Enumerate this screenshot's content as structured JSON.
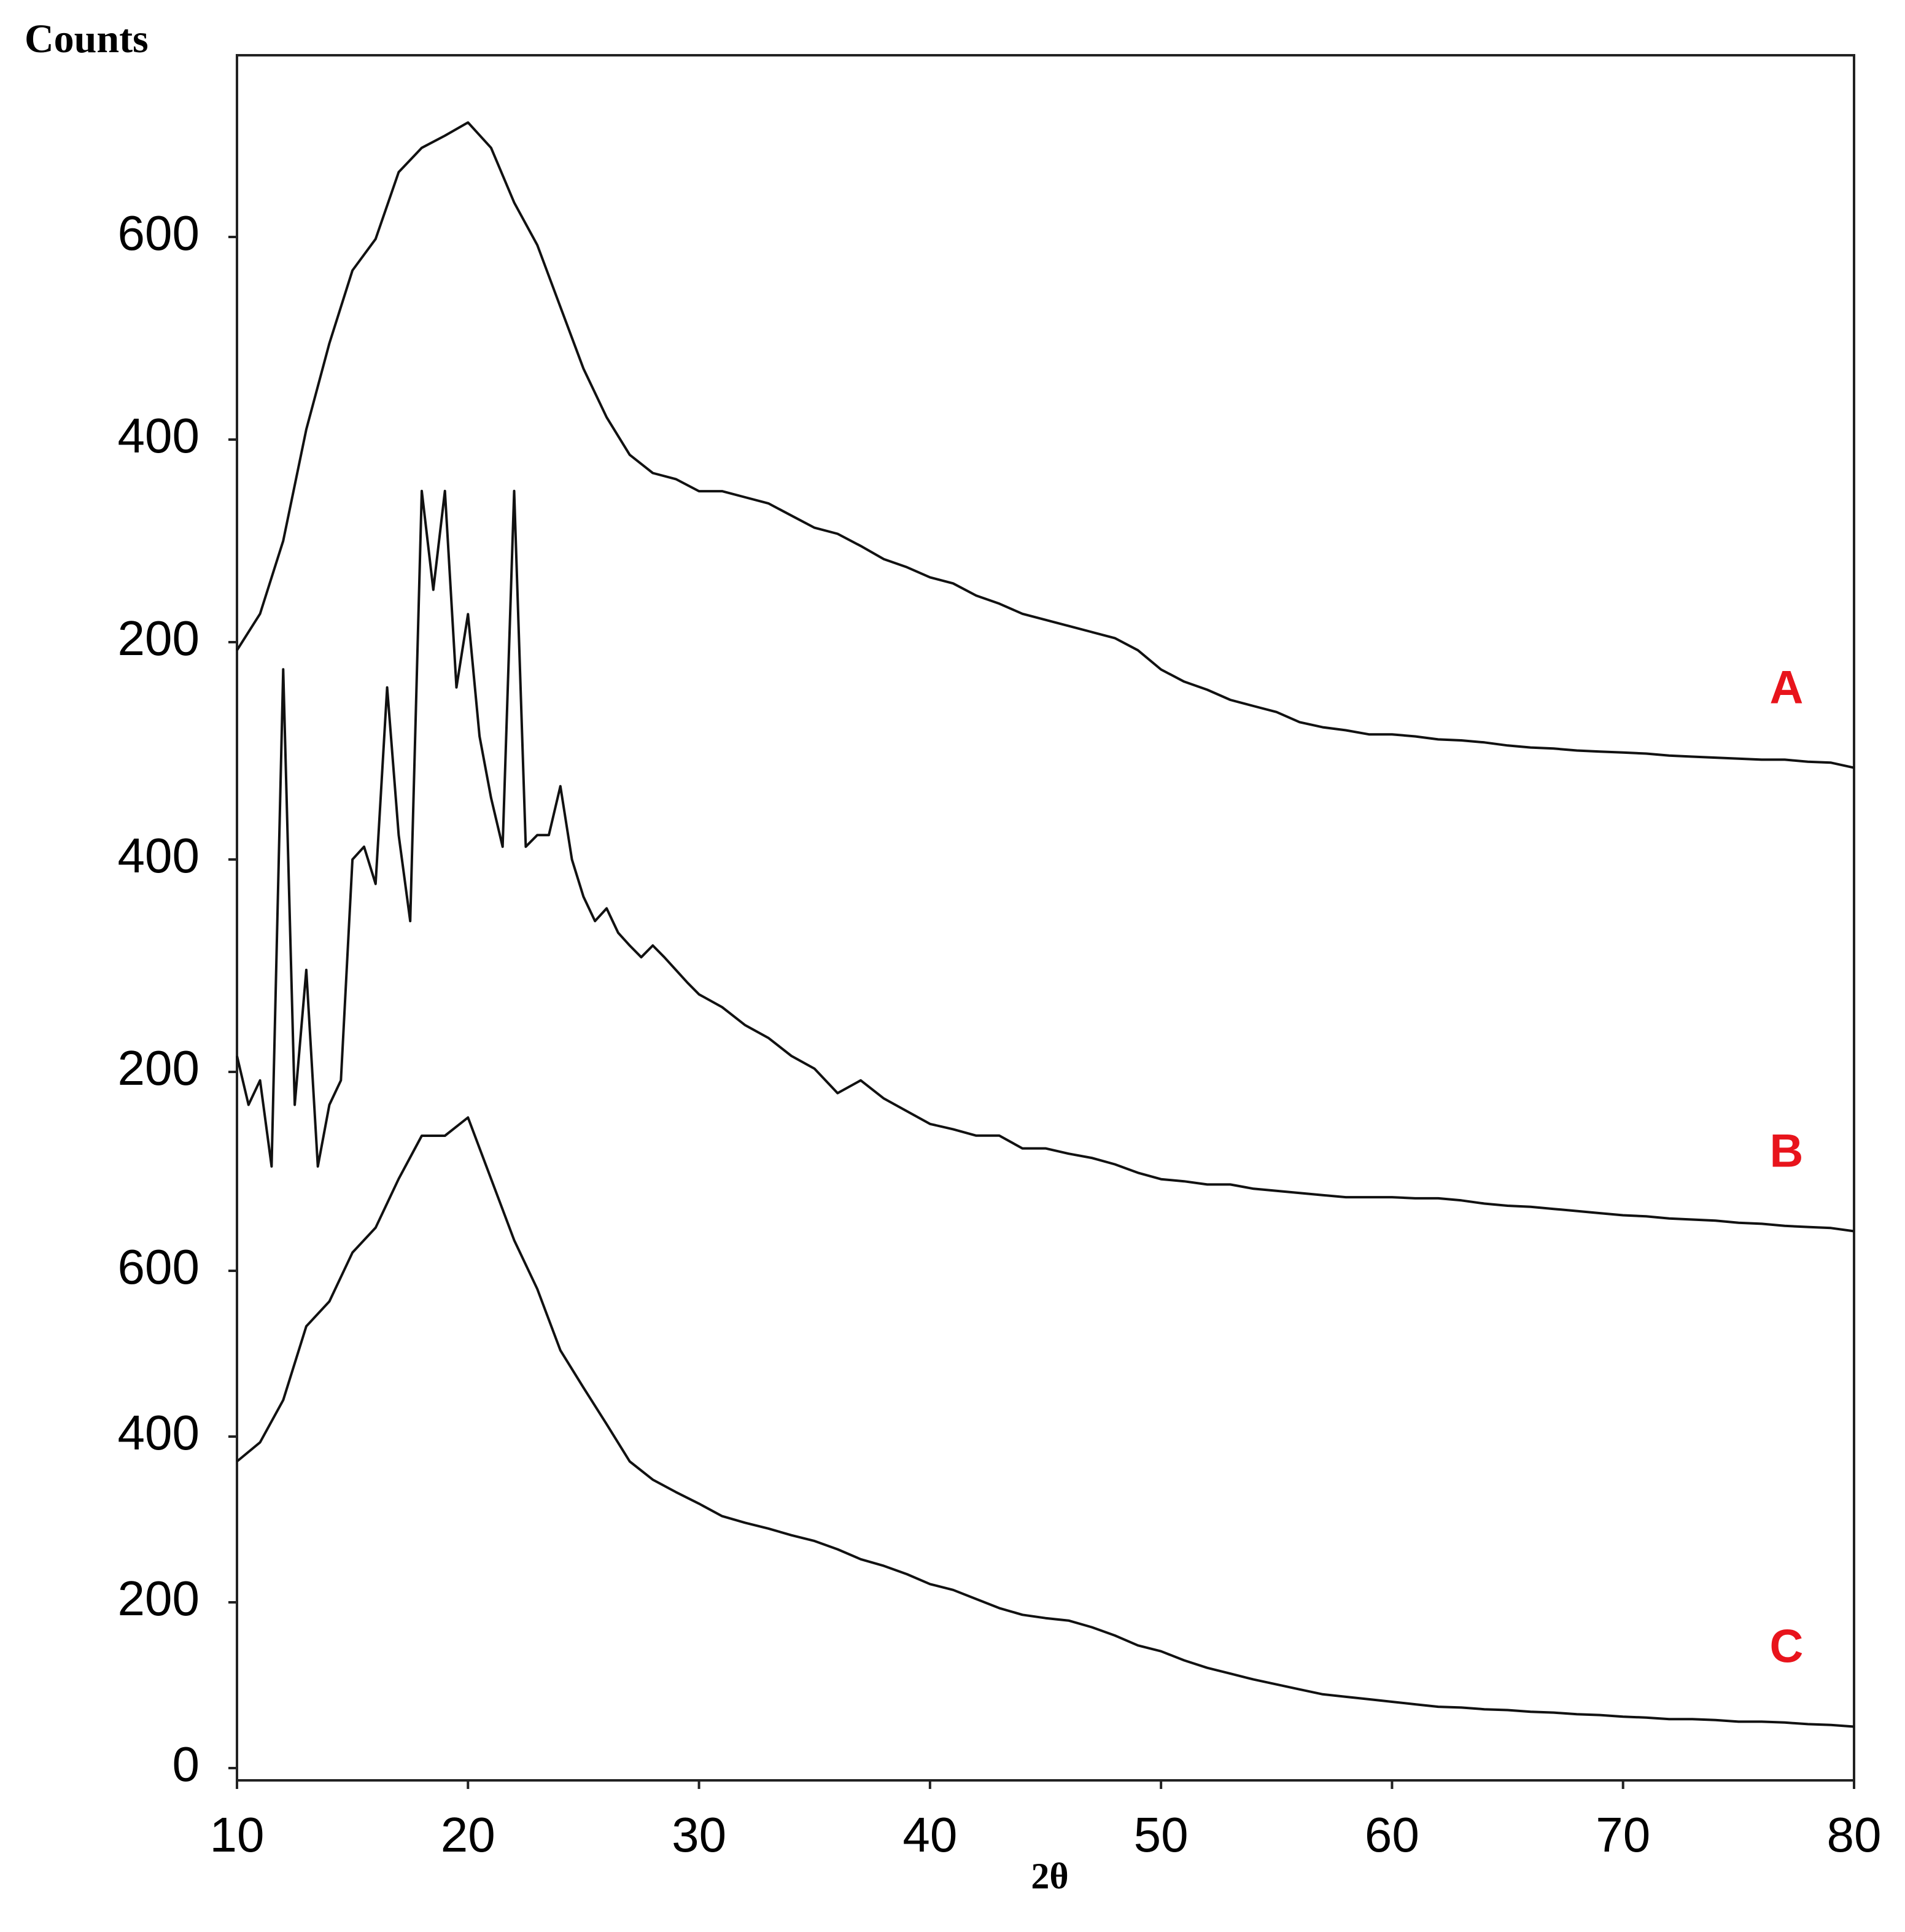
{
  "chart_data": [
    {
      "type": "line",
      "ylabel": "Counts",
      "ylim": [
        0,
        800
      ],
      "yticks": [
        200,
        400,
        600
      ],
      "xlim": [
        10,
        80
      ],
      "label_color": "#e8141c",
      "x": [
        10,
        11,
        12,
        13,
        14,
        15,
        16,
        17,
        18,
        19,
        20,
        21,
        22,
        23,
        24,
        25,
        26,
        27,
        28,
        29,
        30,
        31,
        32,
        33,
        34,
        35,
        36,
        37,
        38,
        39,
        40,
        41,
        42,
        43,
        44,
        45,
        46,
        47,
        48,
        49,
        50,
        51,
        52,
        53,
        54,
        55,
        56,
        57,
        58,
        59,
        60,
        61,
        62,
        63,
        64,
        65,
        66,
        67,
        68,
        69,
        70,
        71,
        72,
        73,
        74,
        75,
        76,
        77,
        78,
        79,
        80
      ],
      "series": [
        {
          "name": "A",
          "color": "#111111",
          "values": [
            192,
            228,
            300,
            410,
            495,
            567,
            598,
            664,
            688,
            700,
            713,
            688,
            634,
            592,
            531,
            470,
            422,
            385,
            367,
            361,
            349,
            349,
            343,
            337,
            325,
            313,
            307,
            295,
            282,
            274,
            264,
            258,
            246,
            238,
            228,
            222,
            216,
            210,
            204,
            192,
            173,
            161,
            153,
            143,
            137,
            131,
            121,
            116,
            113,
            109,
            109,
            107,
            104,
            103,
            101,
            98,
            96,
            95,
            93,
            92,
            91,
            90,
            88,
            87,
            86,
            85,
            84,
            84,
            82,
            81,
            76
          ]
        }
      ]
    },
    {
      "type": "line",
      "ylim": [
        0,
        800
      ],
      "yticks": [
        200,
        400
      ],
      "xlim": [
        10,
        80
      ],
      "label_color": "#e8141c",
      "x": [
        10,
        10.5,
        11,
        11.5,
        12,
        12.5,
        13,
        13.5,
        14,
        14.5,
        15,
        15.5,
        16,
        16.5,
        17,
        17.5,
        18,
        18.5,
        19,
        19.5,
        20,
        20.5,
        21,
        21.5,
        22,
        22.5,
        23,
        23.5,
        24,
        24.5,
        25,
        25.5,
        26,
        26.5,
        27,
        27.5,
        28,
        28.5,
        29,
        29.5,
        30,
        31,
        32,
        33,
        34,
        35,
        36,
        37,
        38,
        39,
        40,
        41,
        42,
        43,
        44,
        45,
        46,
        47,
        48,
        49,
        50,
        51,
        52,
        53,
        54,
        55,
        56,
        57,
        58,
        59,
        60,
        61,
        62,
        63,
        64,
        65,
        66,
        67,
        68,
        69,
        70,
        71,
        72,
        73,
        74,
        75,
        76,
        77,
        78,
        79,
        80
      ],
      "series": [
        {
          "name": "B",
          "color": "#111111",
          "values": [
            215,
            169,
            192,
            111,
            579,
            169,
            296,
            111,
            169,
            192,
            400,
            412,
            377,
            562,
            423,
            342,
            747,
            654,
            747,
            562,
            631,
            516,
            458,
            412,
            747,
            412,
            423,
            423,
            469,
            400,
            365,
            342,
            354,
            331,
            319,
            308,
            319,
            308,
            296,
            284,
            273,
            261,
            244,
            232,
            215,
            203,
            180,
            192,
            175,
            163,
            151,
            146,
            140,
            140,
            128,
            128,
            123,
            119,
            113,
            105,
            99,
            97,
            94,
            94,
            90,
            88,
            86,
            84,
            82,
            82,
            82,
            81,
            81,
            79,
            76,
            74,
            73,
            71,
            69,
            67,
            65,
            64,
            62,
            61,
            60,
            58,
            57,
            55,
            54,
            53,
            50
          ]
        }
      ]
    },
    {
      "type": "line",
      "ylim": [
        0,
        900
      ],
      "yticks": [
        0,
        200,
        400,
        600
      ],
      "xlim": [
        10,
        80
      ],
      "xticks": [
        10,
        20,
        30,
        40,
        50,
        60,
        70,
        80
      ],
      "xlabel": "2θ",
      "label_color": "#e8141c",
      "x": [
        10,
        11,
        12,
        13,
        14,
        15,
        16,
        17,
        18,
        19,
        20,
        21,
        22,
        23,
        24,
        25,
        26,
        27,
        28,
        29,
        30,
        31,
        32,
        33,
        34,
        35,
        36,
        37,
        38,
        39,
        40,
        41,
        42,
        43,
        44,
        45,
        46,
        47,
        48,
        49,
        50,
        51,
        52,
        53,
        54,
        55,
        56,
        57,
        58,
        59,
        60,
        61,
        62,
        63,
        64,
        65,
        66,
        67,
        68,
        69,
        70,
        71,
        72,
        73,
        74,
        75,
        76,
        77,
        78,
        79,
        80
      ],
      "series": [
        {
          "name": "C",
          "color": "#111111",
          "values": [
            370,
            393,
            444,
            533,
            563,
            622,
            652,
            711,
            763,
            763,
            785,
            711,
            637,
            578,
            504,
            459,
            415,
            370,
            348,
            333,
            319,
            304,
            296,
            289,
            281,
            274,
            264,
            252,
            244,
            234,
            222,
            215,
            204,
            193,
            185,
            181,
            178,
            170,
            160,
            148,
            141,
            130,
            121,
            114,
            107,
            101,
            95,
            89,
            86,
            83,
            80,
            77,
            74,
            73,
            71,
            70,
            68,
            67,
            65,
            64,
            62,
            61,
            59,
            59,
            58,
            56,
            56,
            55,
            53,
            52,
            50
          ]
        }
      ]
    }
  ]
}
